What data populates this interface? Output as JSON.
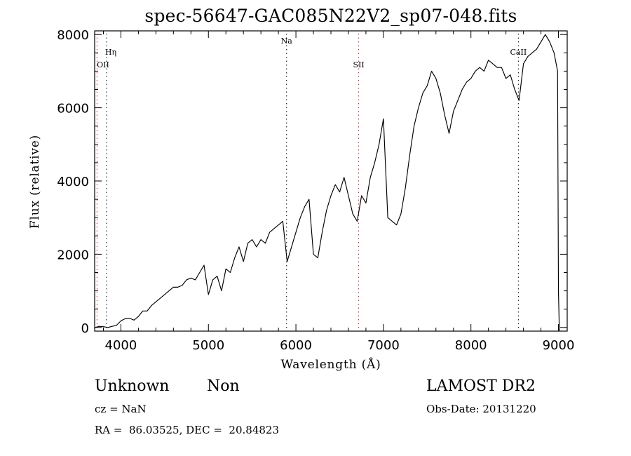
{
  "labels": {
    "title": "spec-56647-GAC085N22V2_sp07-048.fits",
    "xlabel": "Wavelength (Å)",
    "ylabel": "Flux (relative)"
  },
  "info": {
    "class": "Unknown",
    "subclass": "Non",
    "survey": "LAMOST DR2",
    "cz": "cz = NaN",
    "obs_date": "Obs-Date: 20131220",
    "coords": "RA =  86.03525, DEC =  20.84823"
  },
  "chart_data": {
    "type": "line",
    "title": "spec-56647-GAC085N22V2_sp07-048.fits",
    "xlabel": "Wavelength (Å)",
    "ylabel": "Flux (relative)",
    "xlim": [
      3700,
      9100
    ],
    "ylim": [
      -100,
      8100
    ],
    "x_ticks": [
      4000,
      5000,
      6000,
      7000,
      8000,
      9000
    ],
    "y_ticks": [
      0,
      2000,
      4000,
      6000,
      8000
    ],
    "grid": false,
    "line_color": "#000000",
    "marker_color_red": "#cc2222",
    "spectral_lines": [
      {
        "label": "Hη",
        "wavelength": 3836,
        "color": "#000000"
      },
      {
        "label": "OII",
        "wavelength": 3727,
        "color": "#cc2222"
      },
      {
        "label": "Na",
        "wavelength": 5893,
        "color": "#000000"
      },
      {
        "label": "SII",
        "wavelength": 6717,
        "color": "#cc2222"
      },
      {
        "label": "CaII",
        "wavelength": 8542,
        "color": "#000000"
      }
    ],
    "series": [
      {
        "x": [
          3700,
          3750,
          3800,
          3850,
          3900,
          3950,
          4000,
          4050,
          4100,
          4150,
          4200,
          4250,
          4300,
          4350,
          4400,
          4450,
          4500,
          4550,
          4600,
          4650,
          4700,
          4750,
          4800,
          4850,
          4900,
          4950,
          5000,
          5050,
          5100,
          5150,
          5200,
          5250,
          5300,
          5350,
          5400,
          5450,
          5500,
          5550,
          5600,
          5650,
          5700,
          5750,
          5800,
          5850,
          5900,
          5950,
          6000,
          6050,
          6100,
          6150,
          6200,
          6250,
          6300,
          6350,
          6400,
          6450,
          6500,
          6550,
          6600,
          6650,
          6700,
          6750,
          6800,
          6850,
          6900,
          6950,
          7000,
          7050,
          7100,
          7150,
          7200,
          7250,
          7300,
          7350,
          7400,
          7450,
          7500,
          7550,
          7600,
          7650,
          7700,
          7750,
          7800,
          7850,
          7900,
          7950,
          8000,
          8050,
          8100,
          8150,
          8200,
          8250,
          8300,
          8350,
          8400,
          8450,
          8500,
          8550,
          8600,
          8650,
          8700,
          8750,
          8800,
          8850,
          8900,
          8950,
          8990,
          9000,
          9010
        ],
        "y": [
          0,
          30,
          20,
          0,
          30,
          60,
          180,
          240,
          250,
          200,
          300,
          450,
          450,
          600,
          700,
          800,
          900,
          1000,
          1100,
          1100,
          1150,
          1300,
          1350,
          1300,
          1500,
          1700,
          900,
          1300,
          1400,
          1000,
          1600,
          1500,
          1900,
          2200,
          1800,
          2300,
          2400,
          2200,
          2400,
          2300,
          2600,
          2700,
          2800,
          2900,
          1800,
          2200,
          2600,
          3000,
          3300,
          3500,
          2000,
          1900,
          2600,
          3200,
          3600,
          3900,
          3700,
          4100,
          3600,
          3100,
          2900,
          3600,
          3400,
          4100,
          4500,
          5000,
          5700,
          3000,
          2900,
          2800,
          3100,
          3800,
          4700,
          5500,
          6000,
          6400,
          6600,
          7000,
          6800,
          6400,
          5800,
          5300,
          5900,
          6200,
          6500,
          6700,
          6800,
          7000,
          7100,
          7000,
          7300,
          7200,
          7100,
          7100,
          6800,
          6900,
          6500,
          6200,
          7200,
          7400,
          7500,
          7600,
          7800,
          8000,
          7800,
          7500,
          7000,
          1000,
          -100
        ]
      }
    ]
  }
}
